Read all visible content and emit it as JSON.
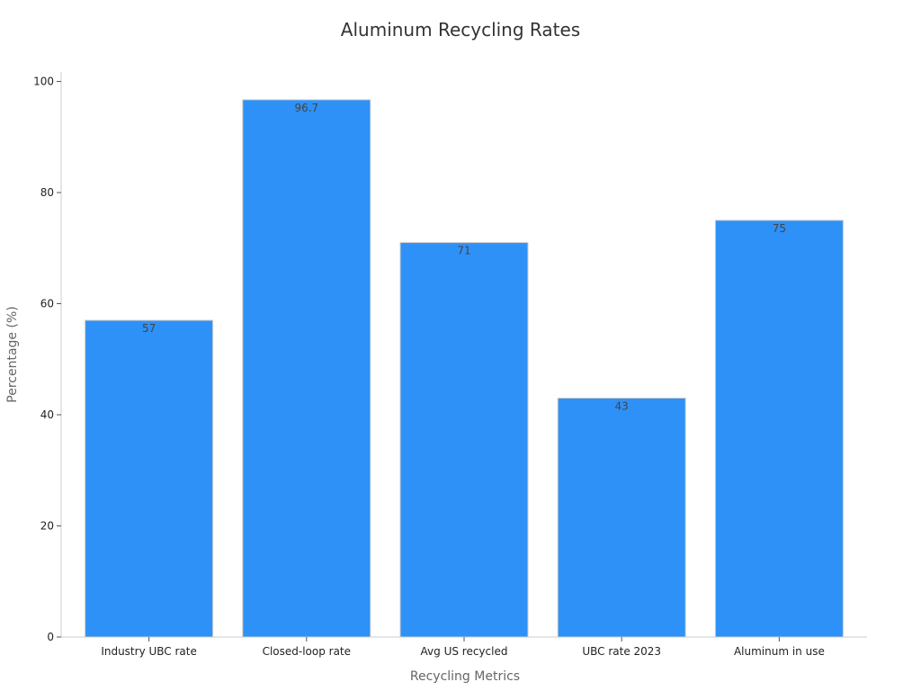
{
  "chart_data": {
    "type": "bar",
    "title": "Aluminum Recycling Rates",
    "xlabel": "Recycling Metrics",
    "ylabel": "Percentage (%)",
    "categories": [
      "Industry UBC rate",
      "Closed-loop rate",
      "Avg US recycled",
      "UBC rate 2023",
      "Aluminum in use"
    ],
    "values": [
      57,
      96.7,
      71,
      43,
      75
    ],
    "value_labels": [
      "57",
      "96.7",
      "71",
      "43",
      "75"
    ],
    "ylim": [
      0,
      102
    ],
    "yticks": [
      0,
      20,
      40,
      60,
      80,
      100
    ],
    "grid": false,
    "bar_color": "#2e91f7",
    "bar_edge_color": "#cccccc"
  }
}
